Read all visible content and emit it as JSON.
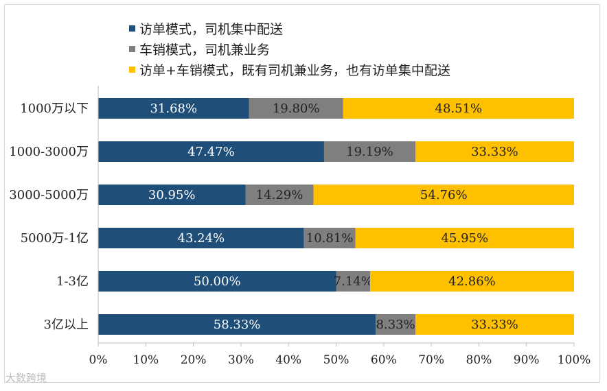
{
  "chart_data": {
    "type": "bar",
    "orientation": "horizontal",
    "stacked": true,
    "categories": [
      "1000万以下",
      "1000-3000万",
      "3000-5000万",
      "5000万-1亿",
      "1-3亿",
      "3亿以上"
    ],
    "series": [
      {
        "name": "访单模式，司机集中配送",
        "color": "#1f4e79",
        "values": [
          31.68,
          47.47,
          30.95,
          43.24,
          50.0,
          58.33
        ],
        "labels": [
          "31.68%",
          "47.47%",
          "30.95%",
          "43.24%",
          "50.00%",
          "58.33%"
        ]
      },
      {
        "name": "车销模式，司机兼业务",
        "color": "#7f7f7f",
        "values": [
          19.8,
          19.19,
          14.29,
          10.81,
          7.14,
          8.33
        ],
        "labels": [
          "19.80%",
          "19.19%",
          "14.29%",
          "10.81%",
          "7.14%",
          "8.33%"
        ]
      },
      {
        "name": "访单+车销模式，既有司机兼业务，也有访单集中配送",
        "color": "#ffc000",
        "values": [
          48.51,
          33.33,
          54.76,
          45.95,
          42.86,
          33.33
        ],
        "labels": [
          "48.51%",
          "33.33%",
          "54.76%",
          "45.95%",
          "42.86%",
          "33.33%"
        ]
      }
    ],
    "xlim": [
      0,
      100
    ],
    "xticks": [
      "0%",
      "10%",
      "20%",
      "30%",
      "40%",
      "50%",
      "60%",
      "70%",
      "80%",
      "90%",
      "100%"
    ],
    "legend_position": "top-left",
    "grid": false
  },
  "watermark": "大数跨境"
}
